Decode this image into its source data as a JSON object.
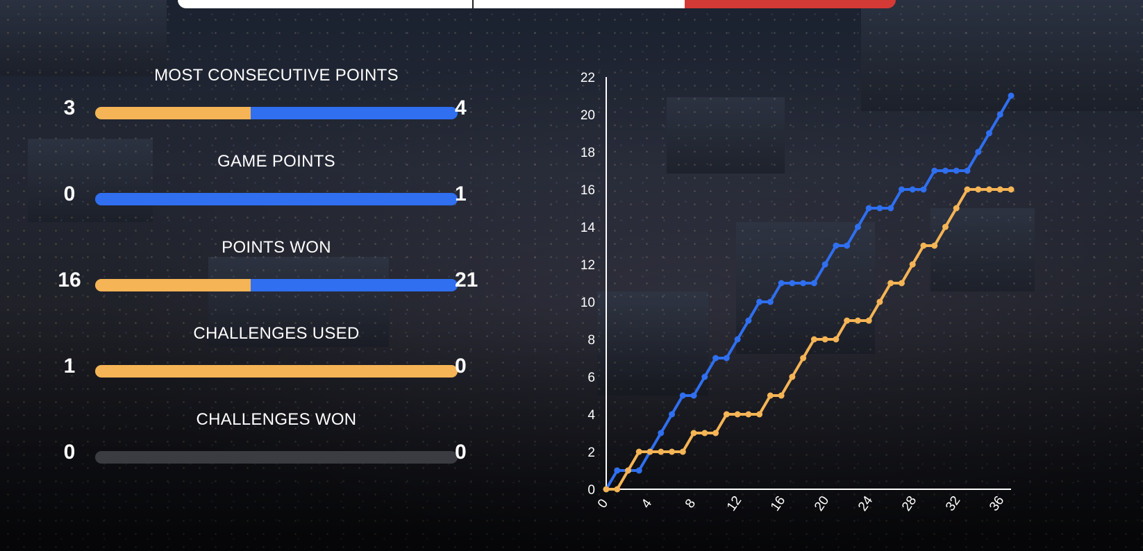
{
  "colors": {
    "player_a": "#f5b455",
    "player_b": "#2f6ff0",
    "empty_bar": "#3a3c42",
    "header_accent": "#d33a35"
  },
  "stats": [
    {
      "label": "MOST CONSECUTIVE POINTS",
      "left": "3",
      "right": "4",
      "left_share": 0.43
    },
    {
      "label": "GAME POINTS",
      "left": "0",
      "right": "1",
      "left_share": 0
    },
    {
      "label": "POINTS WON",
      "left": "16",
      "right": "21",
      "left_share": 0.43
    },
    {
      "label": "CHALLENGES USED",
      "left": "1",
      "right": "0",
      "left_share": 1
    },
    {
      "label": "CHALLENGES WON",
      "left": "0",
      "right": "0",
      "left_share": null
    }
  ],
  "chart_data": {
    "type": "line",
    "title": "",
    "xlabel": "",
    "ylabel": "",
    "xlim": [
      0,
      37
    ],
    "ylim": [
      0,
      22
    ],
    "x_ticks": [
      "0",
      "4",
      "8",
      "12",
      "16",
      "20",
      "24",
      "28",
      "32",
      "36"
    ],
    "y_ticks": [
      "0",
      "2",
      "4",
      "6",
      "8",
      "10",
      "12",
      "14",
      "16",
      "18",
      "20",
      "22"
    ],
    "grid": false,
    "series": [
      {
        "color": "#2f6ff0",
        "x": [
          0,
          1,
          2,
          3,
          4,
          5,
          6,
          7,
          8,
          9,
          10,
          11,
          12,
          13,
          14,
          15,
          16,
          17,
          18,
          19,
          20,
          21,
          22,
          23,
          24,
          25,
          26,
          27,
          28,
          29,
          30,
          31,
          32,
          33,
          34,
          35,
          36,
          37
        ],
        "values": [
          0,
          1,
          1,
          1,
          2,
          3,
          4,
          5,
          5,
          6,
          7,
          7,
          8,
          9,
          10,
          10,
          11,
          11,
          11,
          11,
          12,
          13,
          13,
          14,
          15,
          15,
          15,
          16,
          16,
          16,
          17,
          17,
          17,
          17,
          18,
          19,
          20,
          21
        ]
      },
      {
        "color": "#f5b455",
        "x": [
          0,
          1,
          2,
          3,
          4,
          5,
          6,
          7,
          8,
          9,
          10,
          11,
          12,
          13,
          14,
          15,
          16,
          17,
          18,
          19,
          20,
          21,
          22,
          23,
          24,
          25,
          26,
          27,
          28,
          29,
          30,
          31,
          32,
          33,
          34,
          35,
          36,
          37
        ],
        "values": [
          0,
          0,
          1,
          2,
          2,
          2,
          2,
          2,
          3,
          3,
          3,
          4,
          4,
          4,
          4,
          5,
          5,
          6,
          7,
          8,
          8,
          8,
          9,
          9,
          9,
          10,
          11,
          11,
          12,
          13,
          13,
          14,
          15,
          16,
          16,
          16,
          16,
          16
        ]
      }
    ]
  }
}
